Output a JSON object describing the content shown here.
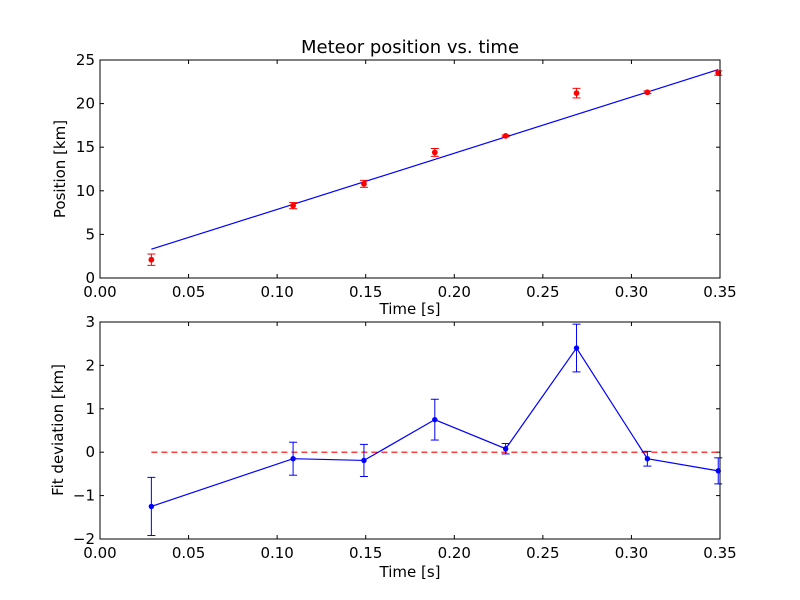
{
  "chart_data": [
    {
      "type": "scatter",
      "title": "Meteor position vs. time",
      "xlabel": "Time [s]",
      "ylabel": "Position [km]",
      "xlim": [
        0.0,
        0.35
      ],
      "ylim": [
        0,
        25
      ],
      "xticks": [
        "0.00",
        "0.05",
        "0.10",
        "0.15",
        "0.20",
        "0.25",
        "0.30",
        "0.35"
      ],
      "yticks": [
        "0",
        "5",
        "10",
        "15",
        "20",
        "25"
      ],
      "grid": false,
      "colors": {
        "points": "#ff0000",
        "fit": "#0000ff"
      },
      "series": [
        {
          "kind": "points-with-errorbars",
          "x": [
            0.029,
            0.109,
            0.149,
            0.189,
            0.229,
            0.269,
            0.309,
            0.349
          ],
          "y": [
            2.1,
            8.3,
            10.8,
            14.4,
            16.3,
            21.2,
            21.3,
            23.5
          ],
          "yerr": [
            0.65,
            0.35,
            0.4,
            0.45,
            0.1,
            0.55,
            0.15,
            0.25
          ]
        },
        {
          "kind": "fit-line",
          "x": [
            0.029,
            0.349
          ],
          "y": [
            3.3,
            23.9
          ]
        }
      ]
    },
    {
      "type": "line",
      "title": "",
      "xlabel": "Time [s]",
      "ylabel": "Fit deviation [km]",
      "xlim": [
        0.0,
        0.35
      ],
      "ylim": [
        -2,
        3
      ],
      "xticks": [
        "0.00",
        "0.05",
        "0.10",
        "0.15",
        "0.20",
        "0.25",
        "0.30",
        "0.35"
      ],
      "yticks": [
        "−2",
        "−1",
        "0",
        "1",
        "2",
        "3"
      ],
      "grid": false,
      "colors": {
        "line": "#0000ff",
        "zero": "#ff0000"
      },
      "reference_line": {
        "y": 0,
        "style": "dashed"
      },
      "series": [
        {
          "kind": "line-with-errorbars",
          "x": [
            0.029,
            0.109,
            0.149,
            0.189,
            0.229,
            0.269,
            0.309,
            0.349
          ],
          "y": [
            -1.25,
            -0.15,
            -0.19,
            0.75,
            0.08,
            2.4,
            -0.15,
            -0.43
          ],
          "yerr": [
            0.67,
            0.38,
            0.37,
            0.47,
            0.12,
            0.55,
            0.17,
            0.3
          ]
        }
      ]
    }
  ]
}
